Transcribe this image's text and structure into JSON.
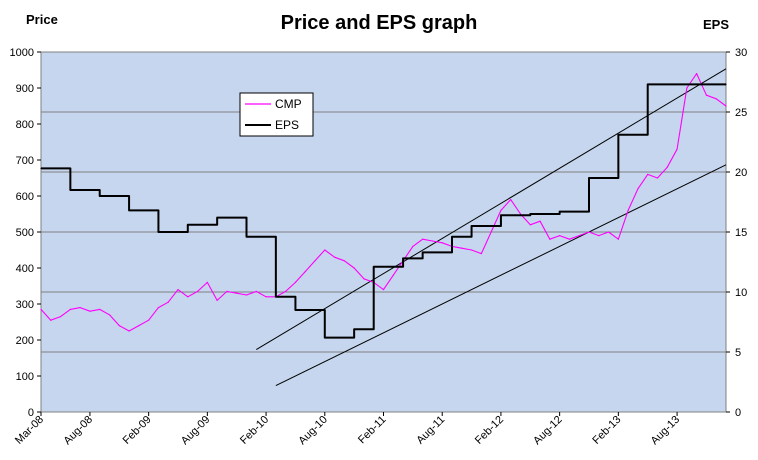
{
  "chart_data": {
    "type": "line",
    "title": "Price and EPS graph",
    "ylabel": "Price",
    "y2label": "EPS",
    "ylim": [
      0,
      1000
    ],
    "y2lim": [
      0,
      30
    ],
    "yticks": [
      "0",
      "100",
      "200",
      "300",
      "400",
      "500",
      "600",
      "700",
      "800",
      "900",
      "1000"
    ],
    "y2ticks": [
      "0",
      "5",
      "10",
      "15",
      "20",
      "25",
      "30"
    ],
    "x_range_months": [
      0,
      70
    ],
    "xticks": [
      {
        "label": "Mar-08",
        "m": 0
      },
      {
        "label": "Aug-08",
        "m": 5
      },
      {
        "label": "Feb-09",
        "m": 11
      },
      {
        "label": "Aug-09",
        "m": 17
      },
      {
        "label": "Feb-10",
        "m": 23
      },
      {
        "label": "Aug-10",
        "m": 29
      },
      {
        "label": "Feb-11",
        "m": 35
      },
      {
        "label": "Aug-11",
        "m": 41
      },
      {
        "label": "Feb-12",
        "m": 47
      },
      {
        "label": "Aug-12",
        "m": 53
      },
      {
        "label": "Feb-13",
        "m": 59
      },
      {
        "label": "Aug-13",
        "m": 65
      }
    ],
    "grid": true,
    "legend_position": "top-left",
    "series": [
      {
        "name": "CMP",
        "axis": "left",
        "color": "#ff00ff",
        "x": [
          0,
          1,
          2,
          3,
          4,
          5,
          6,
          7,
          8,
          9,
          10,
          11,
          12,
          13,
          14,
          15,
          16,
          17,
          18,
          19,
          20,
          21,
          22,
          23,
          24,
          25,
          26,
          27,
          28,
          29,
          30,
          31,
          32,
          33,
          34,
          35,
          36,
          37,
          38,
          39,
          40,
          41,
          42,
          43,
          44,
          45,
          46,
          47,
          48,
          49,
          50,
          51,
          52,
          53,
          54,
          55,
          56,
          57,
          58,
          59,
          60,
          61,
          62,
          63,
          64,
          65,
          66,
          67,
          68,
          69,
          70
        ],
        "values": [
          285,
          255,
          265,
          285,
          290,
          280,
          285,
          270,
          240,
          225,
          240,
          255,
          290,
          305,
          340,
          320,
          335,
          360,
          310,
          335,
          330,
          325,
          335,
          320,
          320,
          335,
          360,
          390,
          420,
          450,
          430,
          420,
          400,
          370,
          360,
          340,
          380,
          420,
          460,
          480,
          475,
          470,
          460,
          455,
          450,
          440,
          500,
          560,
          590,
          550,
          520,
          530,
          480,
          490,
          480,
          490,
          500,
          490,
          500,
          480,
          560,
          620,
          660,
          650,
          680,
          730,
          900,
          940,
          880,
          870,
          850
        ]
      },
      {
        "name": "EPS",
        "axis": "right",
        "color": "#000000",
        "step": true,
        "x": [
          0,
          3,
          6,
          9,
          12,
          15,
          18,
          21,
          24,
          26,
          29,
          32,
          34,
          37,
          39,
          42,
          44,
          47,
          50,
          53,
          56,
          59,
          62,
          65,
          67,
          70
        ],
        "values": [
          20.3,
          18.5,
          18.0,
          16.8,
          15.0,
          15.6,
          16.2,
          14.6,
          9.6,
          8.5,
          6.2,
          6.9,
          12.1,
          12.8,
          13.3,
          14.6,
          15.5,
          16.4,
          16.5,
          16.7,
          19.5,
          23.1,
          27.3,
          27.3,
          27.3,
          27.3
        ]
      }
    ],
    "trendlines_eps": [
      {
        "x": [
          22,
          70
        ],
        "values": [
          5.2,
          28.6
        ]
      },
      {
        "x": [
          24,
          70
        ],
        "values": [
          2.2,
          20.6
        ]
      }
    ],
    "legend": [
      {
        "label": "CMP",
        "color": "#ff00ff"
      },
      {
        "label": "EPS",
        "color": "#000000"
      }
    ]
  }
}
